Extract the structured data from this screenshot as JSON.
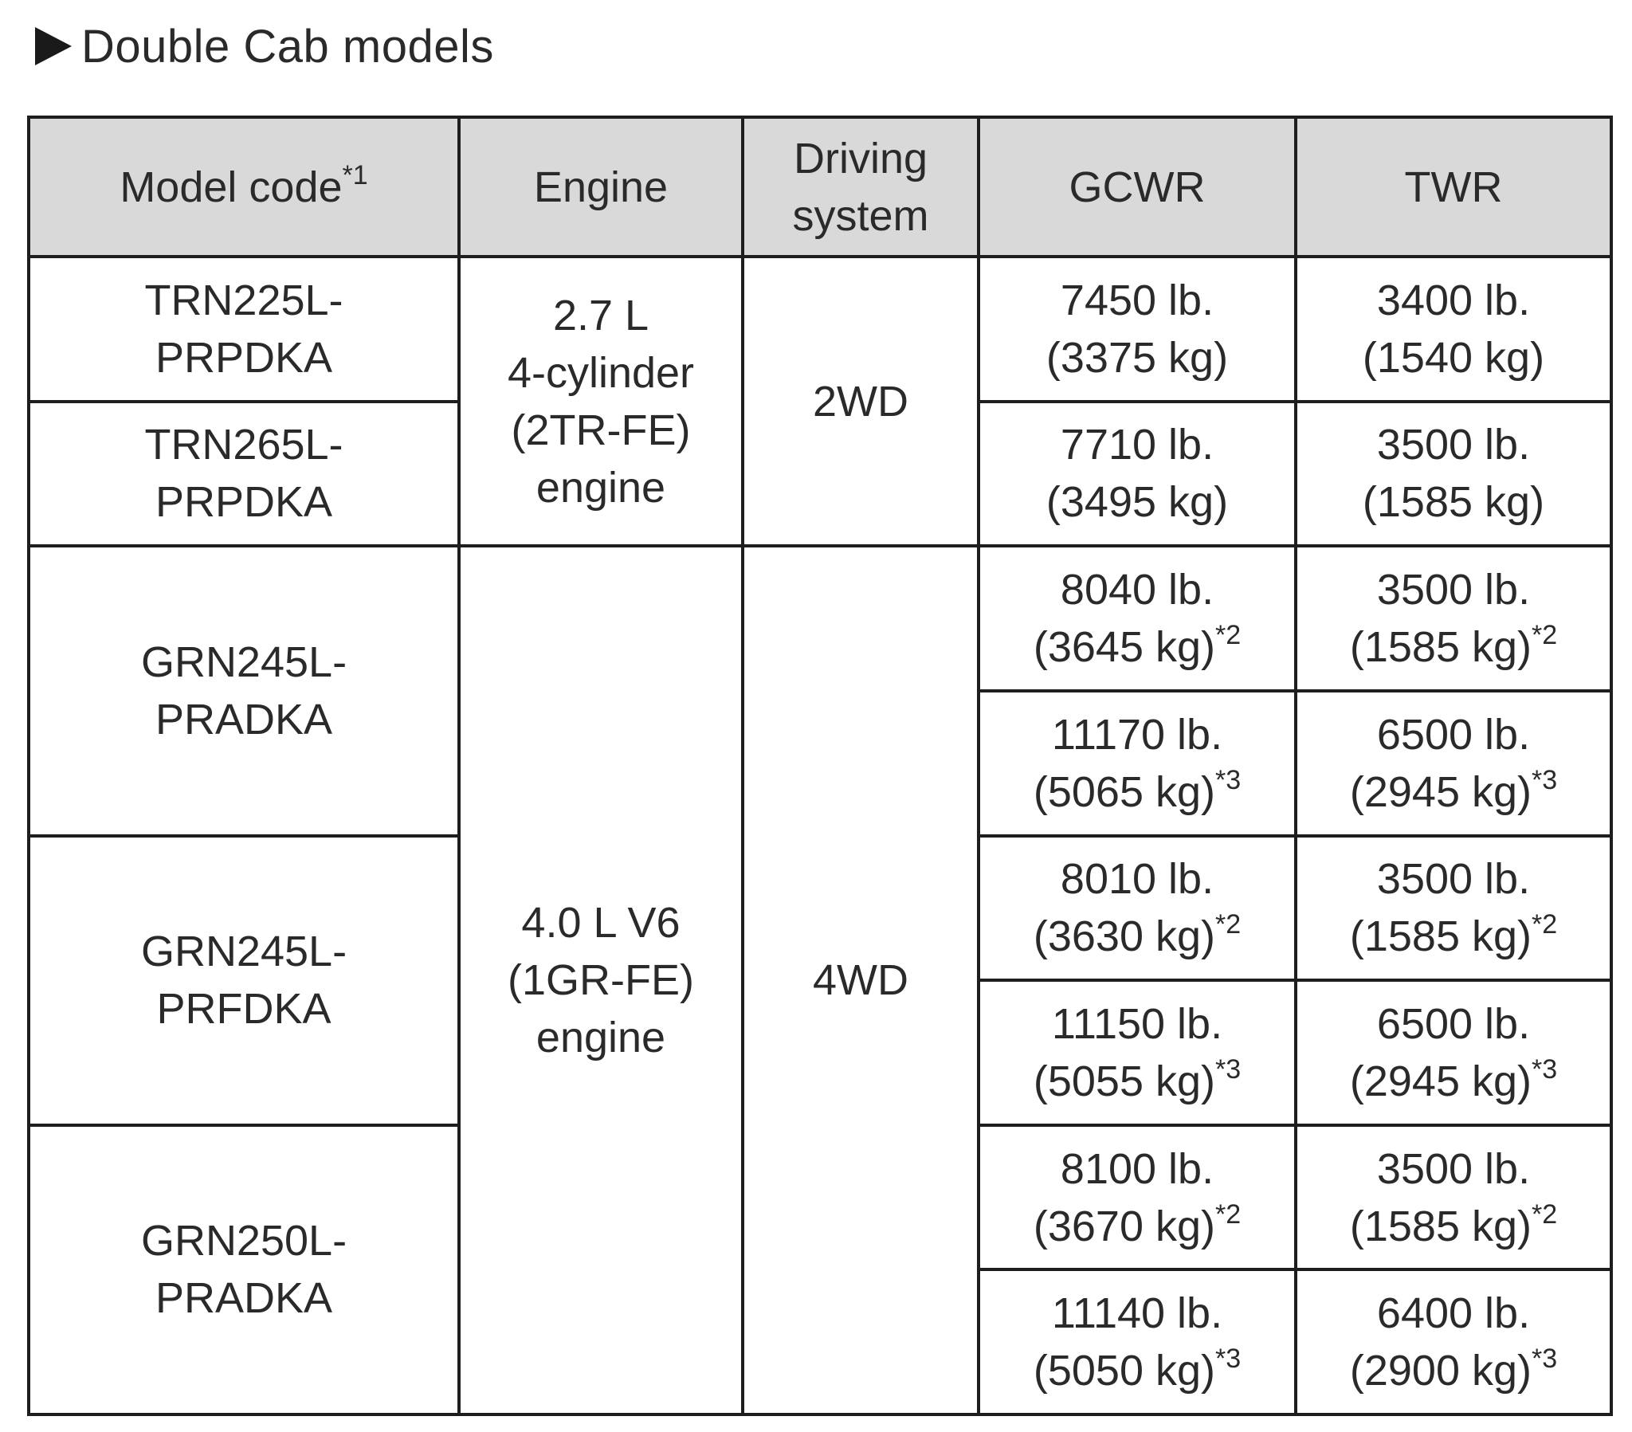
{
  "heading": "Double Cab models",
  "headers": {
    "model_code": "Model code",
    "model_code_note": "*1",
    "engine": "Engine",
    "driving_system_1": "Driving",
    "driving_system_2": "system",
    "gcwr": "GCWR",
    "twr": "TWR"
  },
  "engines": {
    "e1": [
      "2.7 L",
      "4-cylinder",
      "(2TR-FE)",
      "engine"
    ],
    "e2": [
      "4.0 L V6",
      "(1GR-FE)",
      "engine"
    ]
  },
  "drive": {
    "d1": "2WD",
    "d2": "4WD"
  },
  "models": [
    [
      "TRN225L-",
      "PRPDKA"
    ],
    [
      "TRN265L-",
      "PRPDKA"
    ],
    [
      "GRN245L-",
      "PRADKA"
    ],
    [
      "GRN245L-",
      "PRFDKA"
    ],
    [
      "GRN250L-",
      "PRADKA"
    ]
  ],
  "rows": [
    {
      "gcwr_lb": "7450 lb.",
      "gcwr_kg": "(3375 kg)",
      "gcwr_note": "",
      "twr_lb": "3400 lb.",
      "twr_kg": "(1540 kg)",
      "twr_note": ""
    },
    {
      "gcwr_lb": "7710 lb.",
      "gcwr_kg": "(3495 kg)",
      "gcwr_note": "",
      "twr_lb": "3500 lb.",
      "twr_kg": "(1585 kg)",
      "twr_note": ""
    },
    {
      "gcwr_lb": "8040 lb.",
      "gcwr_kg": "(3645 kg)",
      "gcwr_note": "*2",
      "twr_lb": "3500 lb.",
      "twr_kg": "(1585 kg)",
      "twr_note": "*2"
    },
    {
      "gcwr_lb": "11170 lb.",
      "gcwr_kg": "(5065 kg)",
      "gcwr_note": "*3",
      "twr_lb": "6500 lb.",
      "twr_kg": "(2945 kg)",
      "twr_note": "*3"
    },
    {
      "gcwr_lb": "8010 lb.",
      "gcwr_kg": "(3630 kg)",
      "gcwr_note": "*2",
      "twr_lb": "3500 lb.",
      "twr_kg": "(1585 kg)",
      "twr_note": "*2"
    },
    {
      "gcwr_lb": "11150 lb.",
      "gcwr_kg": "(5055 kg)",
      "gcwr_note": "*3",
      "twr_lb": "6500 lb.",
      "twr_kg": "(2945 kg)",
      "twr_note": "*3"
    },
    {
      "gcwr_lb": "8100 lb.",
      "gcwr_kg": "(3670 kg)",
      "gcwr_note": "*2",
      "twr_lb": "3500 lb.",
      "twr_kg": "(1585 kg)",
      "twr_note": "*2"
    },
    {
      "gcwr_lb": "11140 lb.",
      "gcwr_kg": "(5050 kg)",
      "gcwr_note": "*3",
      "twr_lb": "6400 lb.",
      "twr_kg": "(2900 kg)",
      "twr_note": "*3"
    }
  ]
}
